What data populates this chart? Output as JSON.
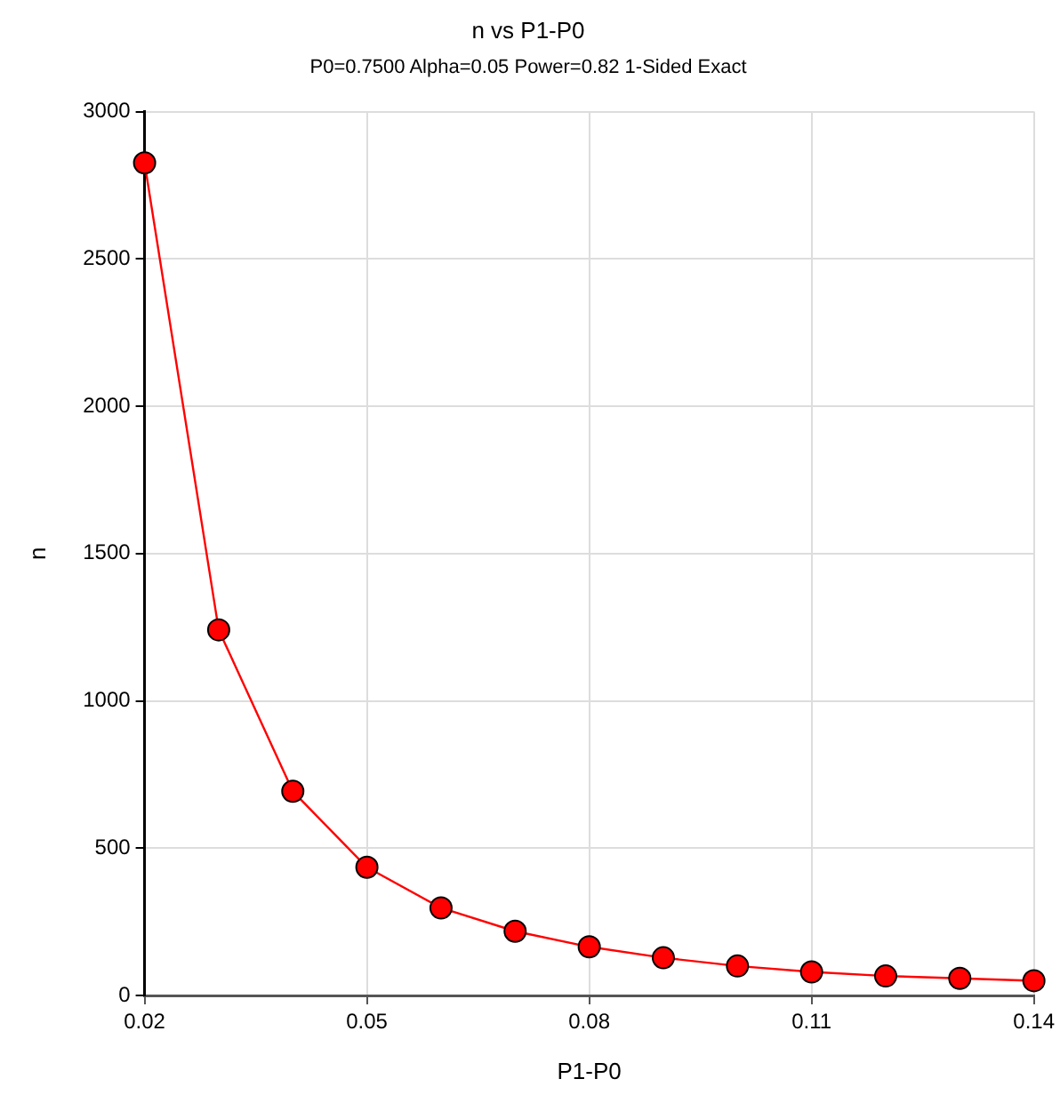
{
  "chart_data": {
    "type": "line",
    "title": "n vs P1-P0",
    "subtitle": "P0=0.7500 Alpha=0.05 Power=0.82 1-Sided Exact",
    "xlabel": "P1-P0",
    "ylabel": "n",
    "x": [
      0.02,
      0.03,
      0.04,
      0.05,
      0.06,
      0.07,
      0.08,
      0.09,
      0.1,
      0.11,
      0.12,
      0.13,
      0.14
    ],
    "series": [
      {
        "color": "#ff0000",
        "values": [
          2826,
          1241,
          693,
          435,
          297,
          218,
          165,
          128,
          100,
          80,
          66,
          58,
          50
        ]
      }
    ],
    "xlim": [
      0.02,
      0.14
    ],
    "xticks": [
      0.02,
      0.05,
      0.08,
      0.11,
      0.14
    ],
    "ylim": [
      0,
      3000
    ],
    "yticks": [
      0,
      500,
      1000,
      1500,
      2000,
      2500,
      3000
    ],
    "grid": true,
    "legend": false,
    "marker": "circle",
    "line_style": "solid"
  }
}
